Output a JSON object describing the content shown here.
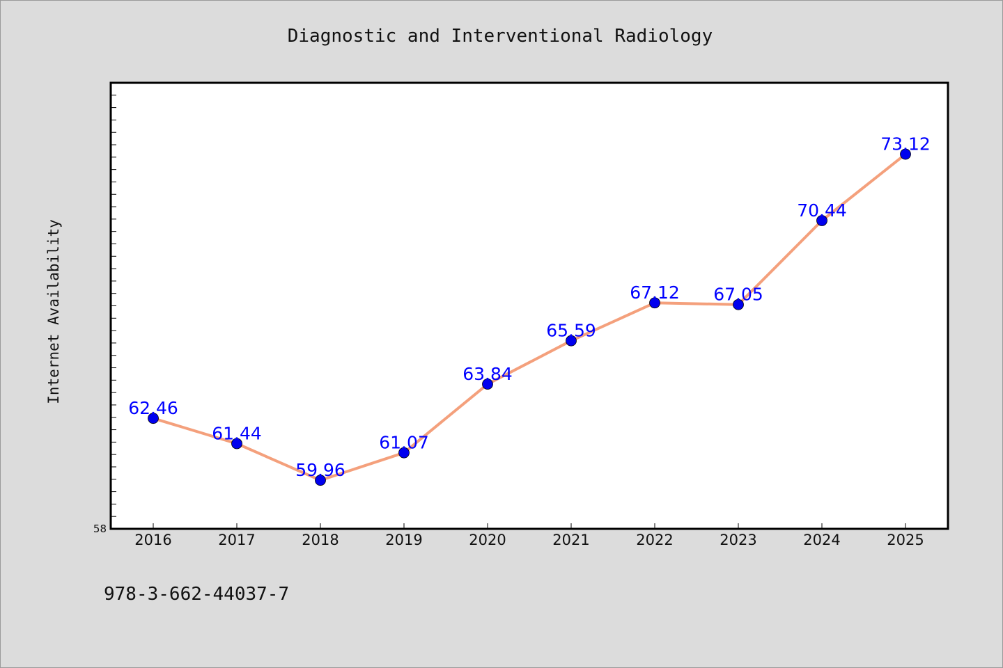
{
  "chart_data": {
    "type": "line",
    "title": "Diagnostic and Interventional Radiology",
    "xlabel": "",
    "ylabel": "Internet Availability",
    "categories": [
      "2016",
      "2017",
      "2018",
      "2019",
      "2020",
      "2021",
      "2022",
      "2023",
      "2024",
      "2025"
    ],
    "series": [
      {
        "values": [
          62.46,
          61.44,
          59.96,
          61.07,
          63.84,
          65.59,
          67.12,
          67.05,
          70.44,
          73.12
        ],
        "labels": [
          "62.46",
          "61.44",
          "59.96",
          "61.07",
          "63.84",
          "65.59",
          "67.12",
          "67.05",
          "70.44",
          "73.12"
        ],
        "line_color": "#f4a07c",
        "marker_color": "#0000ee"
      }
    ],
    "ylim": [
      58,
      76
    ],
    "y_tick_labels": [
      "58"
    ],
    "grid": false,
    "legend": "none"
  },
  "footer": {
    "isbn": "978-3-662-44037-7"
  }
}
